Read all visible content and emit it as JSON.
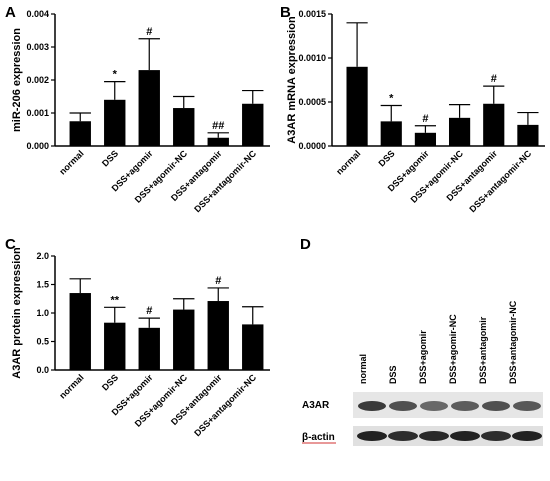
{
  "chart_data": [
    {
      "panel": "A",
      "type": "bar",
      "ylabel": "miR-206 expression",
      "categories": [
        "normal",
        "DSS",
        "DSS+agomir",
        "DSS+agomir-NC",
        "DSS+antagomir",
        "DSS+antagomir-NC"
      ],
      "values": [
        0.00075,
        0.0014,
        0.0023,
        0.00115,
        0.00025,
        0.00128
      ],
      "errors": [
        0.00025,
        0.00055,
        0.00095,
        0.00035,
        0.00015,
        0.0004
      ],
      "annotations": [
        "",
        "*",
        "#",
        "",
        "##",
        ""
      ],
      "ylim": [
        0,
        0.004
      ],
      "yticks": [
        "0.000",
        "0.001",
        "0.002",
        "0.003",
        "0.004"
      ]
    },
    {
      "panel": "B",
      "type": "bar",
      "ylabel": "A3AR mRNA expression",
      "categories": [
        "normal",
        "DSS",
        "DSS+agomir",
        "DSS+agomir-NC",
        "DSS+antagomir",
        "DSS+antagomir-NC"
      ],
      "values": [
        0.0009,
        0.00028,
        0.00015,
        0.00032,
        0.00048,
        0.00024
      ],
      "errors": [
        0.0005,
        0.00018,
        8e-05,
        0.00015,
        0.0002,
        0.00014
      ],
      "annotations": [
        "",
        "*",
        "#",
        "",
        "#",
        ""
      ],
      "ylim": [
        0,
        0.0015
      ],
      "yticks": [
        "0.0000",
        "0.0005",
        "0.0010",
        "0.0015"
      ]
    },
    {
      "panel": "C",
      "type": "bar",
      "ylabel": "A3AR protein expression",
      "categories": [
        "normal",
        "DSS",
        "DSS+agomir",
        "DSS+agomir-NC",
        "DSS+antagomir",
        "DSS+antagomir-NC"
      ],
      "values": [
        1.35,
        0.83,
        0.74,
        1.06,
        1.21,
        0.8
      ],
      "errors": [
        0.25,
        0.27,
        0.17,
        0.19,
        0.23,
        0.31
      ],
      "annotations": [
        "",
        "**",
        "#",
        "",
        "#",
        ""
      ],
      "ylim": [
        0,
        2.0
      ],
      "yticks": [
        "0.0",
        "0.5",
        "1.0",
        "1.5",
        "2.0"
      ]
    }
  ],
  "blot": {
    "panel": "D",
    "lanes": [
      "normal",
      "DSS",
      "DSS+agomir",
      "DSS+agomir-NC",
      "DSS+antagomir",
      "DSS+antagomir-NC"
    ],
    "rows": [
      "A3AR",
      "β-actin"
    ]
  }
}
